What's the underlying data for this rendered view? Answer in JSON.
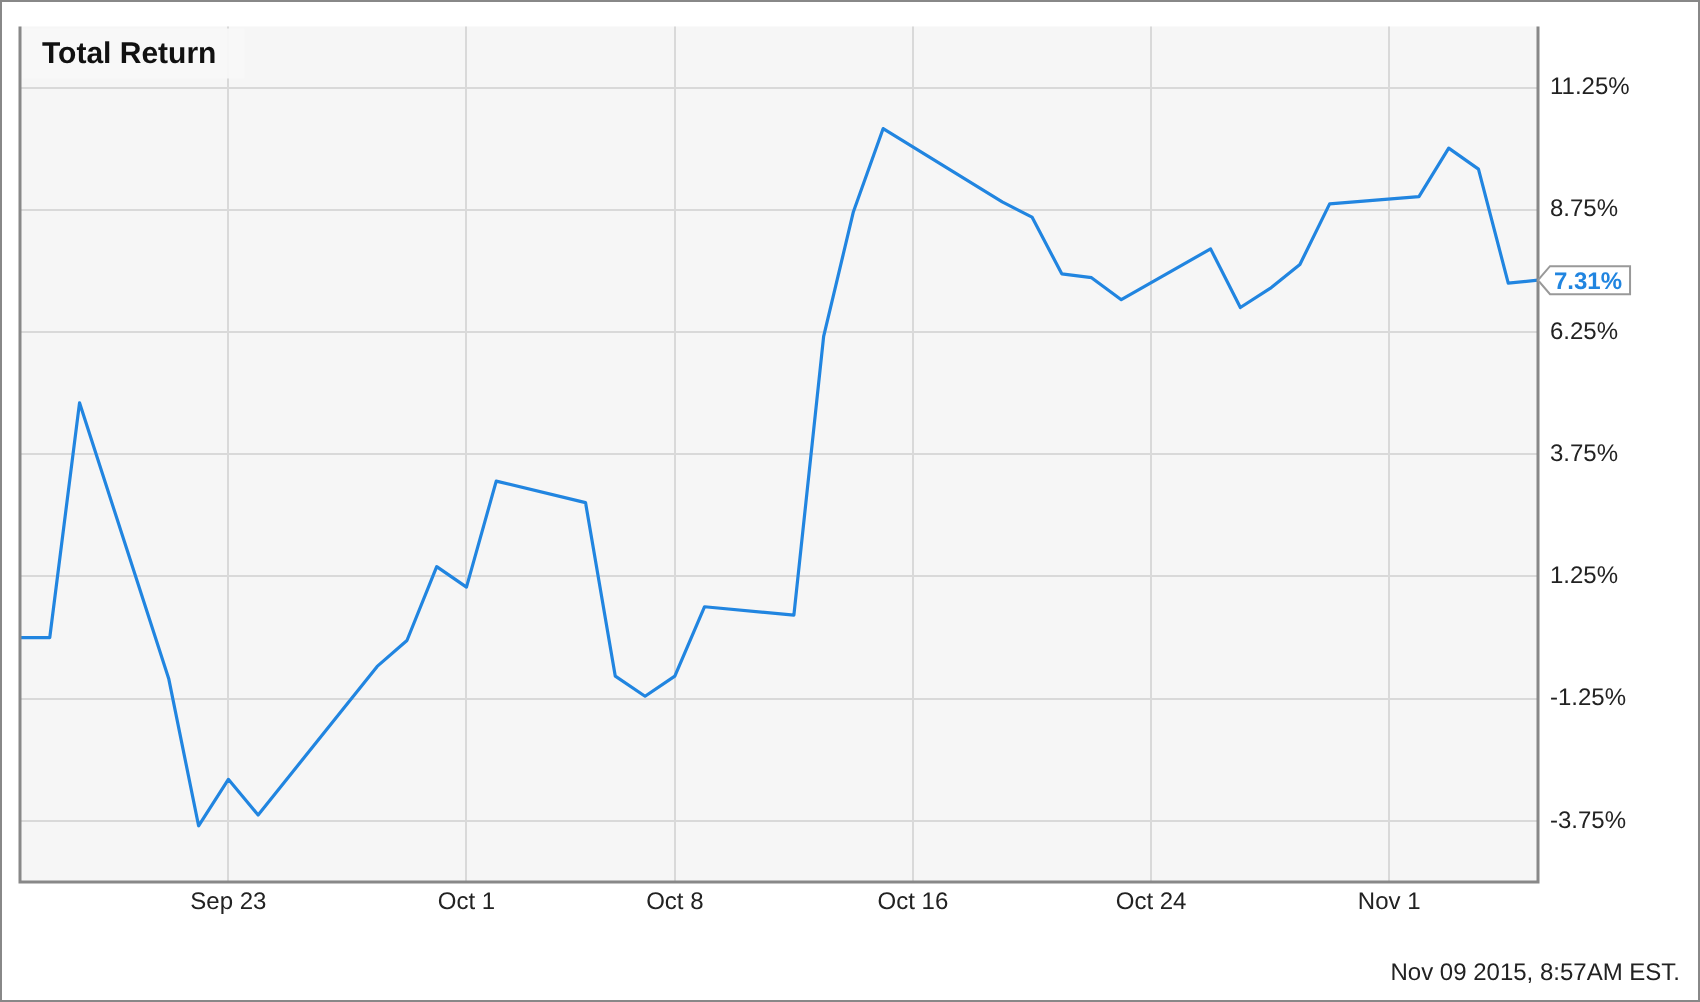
{
  "chart_data": {
    "type": "line",
    "title": "Total Return",
    "x": [
      "2015-09-16",
      "2015-09-17",
      "2015-09-18",
      "2015-09-21",
      "2015-09-22",
      "2015-09-23",
      "2015-09-24",
      "2015-09-28",
      "2015-09-29",
      "2015-09-30",
      "2015-10-01",
      "2015-10-02",
      "2015-10-05",
      "2015-10-06",
      "2015-10-07",
      "2015-10-08",
      "2015-10-09",
      "2015-10-12",
      "2015-10-13",
      "2015-10-14",
      "2015-10-15",
      "2015-10-19",
      "2015-10-20",
      "2015-10-21",
      "2015-10-22",
      "2015-10-23",
      "2015-10-26",
      "2015-10-27",
      "2015-10-28",
      "2015-10-29",
      "2015-10-30",
      "2015-11-02",
      "2015-11-03",
      "2015-11-04",
      "2015-11-05",
      "2015-11-06"
    ],
    "series": [
      {
        "color": "#2185e0",
        "values": [
          0.0,
          0.0,
          4.8,
          -0.85,
          -3.85,
          -2.9,
          -3.63,
          -0.59,
          -0.06,
          1.45,
          1.03,
          3.2,
          2.76,
          -0.79,
          -1.2,
          -0.79,
          0.63,
          0.46,
          6.16,
          8.71,
          10.41,
          8.91,
          8.6,
          7.44,
          7.36,
          6.91,
          7.95,
          6.75,
          7.14,
          7.63,
          8.87,
          9.02,
          10.01,
          9.58,
          7.25,
          7.31
        ]
      }
    ],
    "xlim": [
      "2015-09-16",
      "2015-11-06"
    ],
    "xticks": [
      {
        "value": "2015-09-23",
        "label": "Sep 23"
      },
      {
        "value": "2015-10-01",
        "label": "Oct 1"
      },
      {
        "value": "2015-10-08",
        "label": "Oct 8"
      },
      {
        "value": "2015-10-16",
        "label": "Oct 16"
      },
      {
        "value": "2015-10-24",
        "label": "Oct 24"
      },
      {
        "value": "2015-11-01",
        "label": "Nov 1"
      }
    ],
    "ylim": [
      -5,
      12.5
    ],
    "yticks": [
      {
        "value": -3.75,
        "label": "-3.75%"
      },
      {
        "value": -1.25,
        "label": "-1.25%"
      },
      {
        "value": 1.25,
        "label": "1.25%"
      },
      {
        "value": 3.75,
        "label": "3.75%"
      },
      {
        "value": 6.25,
        "label": "6.25%"
      },
      {
        "value": 8.75,
        "label": "8.75%"
      },
      {
        "value": 11.25,
        "label": "11.25%"
      }
    ],
    "grid": true,
    "legend": false,
    "marker": "none",
    "line_style": "solid",
    "annotations": [
      {
        "text": "7.31%",
        "x": "2015-11-06",
        "y": 7.31
      },
      "Nov 09 2015, 8:57AM EST."
    ]
  }
}
